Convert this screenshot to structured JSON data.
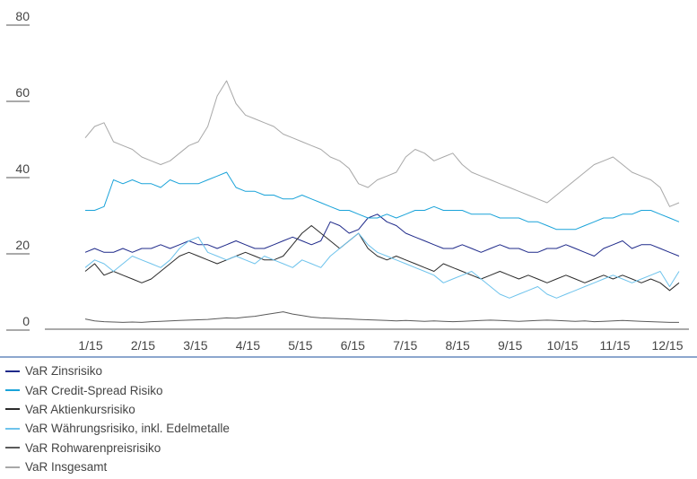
{
  "chart_data": {
    "type": "line",
    "x_ticks": [
      "1/15",
      "2/15",
      "3/15",
      "4/15",
      "5/15",
      "6/15",
      "7/15",
      "8/15",
      "9/15",
      "10/15",
      "11/15",
      "12/15"
    ],
    "ylim": [
      0,
      80
    ],
    "y_ticks": [
      0,
      20,
      40,
      60,
      80
    ],
    "grid": false,
    "legend_position": "bottom-left",
    "series": [
      {
        "name": "VaR Zinsrisiko",
        "color": "#1f2a8a",
        "values": [
          19,
          20,
          19,
          19,
          20,
          19,
          20,
          20,
          21,
          20,
          21,
          22,
          21,
          21,
          20,
          21,
          22,
          21,
          20,
          20,
          21,
          22,
          23,
          22,
          21,
          22,
          27,
          26,
          24,
          25,
          28,
          29,
          27,
          26,
          24,
          23,
          22,
          21,
          20,
          20,
          21,
          20,
          19,
          20,
          21,
          20,
          20,
          19,
          19,
          20,
          20,
          21,
          20,
          19,
          18,
          20,
          21,
          22,
          20,
          21,
          21,
          20,
          19,
          18
        ]
      },
      {
        "name": "VaR Credit-Spread Risiko",
        "color": "#1aa3d9",
        "values": [
          30,
          30,
          31,
          38,
          37,
          38,
          37,
          37,
          36,
          38,
          37,
          37,
          37,
          38,
          39,
          40,
          36,
          35,
          35,
          34,
          34,
          33,
          33,
          34,
          33,
          32,
          31,
          30,
          30,
          29,
          28,
          28,
          29,
          28,
          29,
          30,
          30,
          31,
          30,
          30,
          30,
          29,
          29,
          29,
          28,
          28,
          28,
          27,
          27,
          26,
          25,
          25,
          25,
          26,
          27,
          28,
          28,
          29,
          29,
          30,
          30,
          29,
          28,
          27
        ]
      },
      {
        "name": "VaR Aktienkursrisiko",
        "color": "#2b2b2b",
        "values": [
          14,
          16,
          13,
          14,
          13,
          12,
          11,
          12,
          14,
          16,
          18,
          19,
          18,
          17,
          16,
          17,
          18,
          19,
          18,
          17,
          17,
          18,
          21,
          24,
          26,
          24,
          22,
          20,
          22,
          24,
          20,
          18,
          17,
          18,
          17,
          16,
          15,
          14,
          16,
          15,
          14,
          13,
          12,
          13,
          14,
          13,
          12,
          13,
          12,
          11,
          12,
          13,
          12,
          11,
          12,
          13,
          12,
          13,
          12,
          11,
          12,
          11,
          9,
          11
        ]
      },
      {
        "name": "VaR Währungsrisiko, inkl. Edelmetalle",
        "color": "#6ec3ec",
        "values": [
          15,
          17,
          16,
          14,
          16,
          18,
          17,
          16,
          15,
          17,
          20,
          22,
          23,
          19,
          18,
          17,
          18,
          17,
          16,
          18,
          17,
          16,
          15,
          17,
          16,
          15,
          18,
          20,
          22,
          24,
          21,
          19,
          18,
          17,
          16,
          15,
          14,
          13,
          11,
          12,
          13,
          14,
          12,
          10,
          8,
          7,
          8,
          9,
          10,
          8,
          7,
          8,
          9,
          10,
          11,
          12,
          13,
          12,
          11,
          12,
          13,
          14,
          10,
          14
        ]
      },
      {
        "name": "VaR Rohwarenpreisrisiko",
        "color": "#5a5a5a",
        "values": [
          1.5,
          1,
          0.8,
          0.7,
          0.6,
          0.7,
          0.6,
          0.8,
          0.9,
          1,
          1.1,
          1.2,
          1.3,
          1.4,
          1.6,
          1.8,
          1.7,
          2,
          2.2,
          2.6,
          3,
          3.4,
          2.8,
          2.4,
          2,
          1.8,
          1.7,
          1.6,
          1.5,
          1.4,
          1.3,
          1.2,
          1.1,
          1,
          1.1,
          1,
          0.9,
          1,
          0.9,
          0.8,
          0.9,
          1,
          1.1,
          1.2,
          1.1,
          1,
          0.9,
          1,
          1.1,
          1.2,
          1.1,
          1,
          0.9,
          1,
          0.8,
          0.9,
          1,
          1.1,
          1,
          0.9,
          0.8,
          0.7,
          0.6,
          0.6
        ]
      },
      {
        "name": "VaR Insgesamt",
        "color": "#a8a8a8",
        "values": [
          49,
          52,
          53,
          48,
          47,
          46,
          44,
          43,
          42,
          43,
          45,
          47,
          48,
          52,
          60,
          64,
          58,
          55,
          54,
          53,
          52,
          50,
          49,
          48,
          47,
          46,
          44,
          43,
          41,
          37,
          36,
          38,
          39,
          40,
          44,
          46,
          45,
          43,
          44,
          45,
          42,
          40,
          39,
          38,
          37,
          36,
          35,
          34,
          33,
          32,
          34,
          36,
          38,
          40,
          42,
          43,
          44,
          42,
          40,
          39,
          38,
          36,
          31,
          32
        ]
      }
    ]
  }
}
